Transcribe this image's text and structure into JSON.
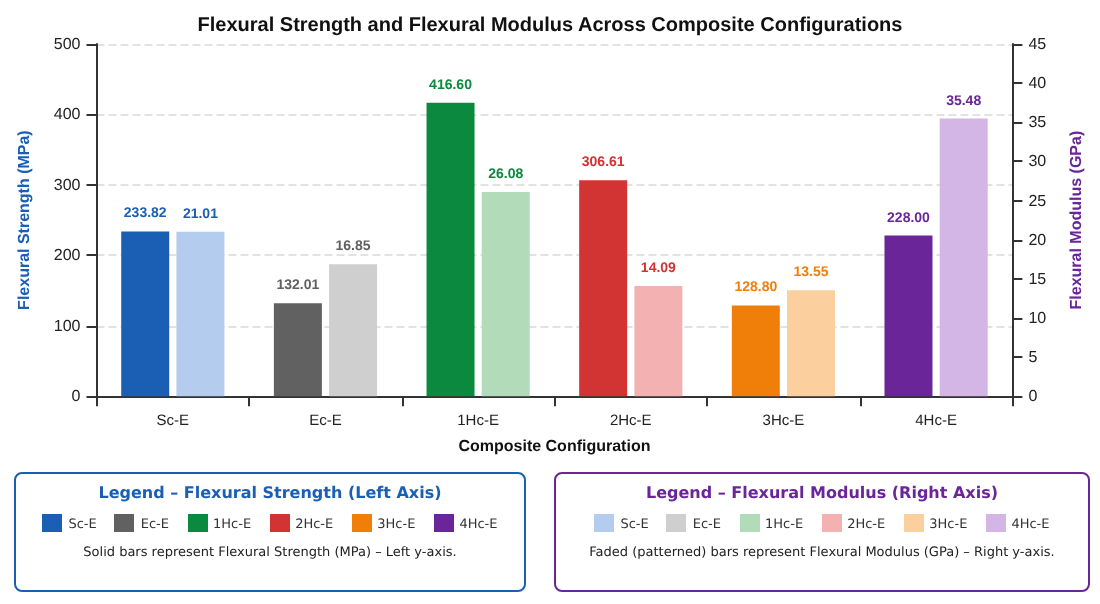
{
  "chart_data": {
    "type": "bar",
    "title": "Flexural Strength and Flexural Modulus Across Composite Configurations",
    "xlabel": "Composite Configuration",
    "ylabel": "Flexural Strength (MPa)",
    "y2label": "Flexural Modulus (GPa)",
    "categories": [
      "Sc-E",
      "Ec-E",
      "1Hc-E",
      "2Hc-E",
      "3Hc-E",
      "4Hc-E"
    ],
    "series": [
      {
        "values": [
          233.82,
          132.01,
          416.6,
          306.61,
          128.8,
          228.0
        ],
        "value_labels": [
          "233.82",
          "132.01",
          "416.60",
          "306.61",
          "128.80",
          "228.00"
        ],
        "colors": [
          "#1a5fb4",
          "#616161",
          "#0b8a3f",
          "#d23333",
          "#f07f0a",
          "#6a2598"
        ]
      },
      {
        "axis": "y2",
        "values": [
          21.01,
          16.85,
          26.08,
          14.09,
          13.55,
          35.48
        ],
        "value_labels": [
          "21.01",
          "16.85",
          "26.08",
          "14.09",
          "13.55",
          "35.48"
        ],
        "colors": [
          "#b4cdee",
          "#cfcfcf",
          "#b2dbba",
          "#f3b1b1",
          "#fbcf9e",
          "#d3b6e6"
        ]
      }
    ],
    "ylim": [
      0,
      500
    ],
    "yticks": [
      0,
      100,
      200,
      300,
      400,
      500
    ],
    "y2lim": [
      0,
      45
    ],
    "y2ticks": [
      0,
      5,
      10,
      15,
      20,
      25,
      30,
      35,
      40,
      45
    ],
    "grid": "y",
    "annotations": [
      "Legend – Flexural Strength (Left Axis)",
      "Solid bars represent Flexural Strength (MPa) – Left y-axis.",
      "Legend – Flexural Modulus (Right Axis)",
      "Faded (patterned) bars represent Flexural Modulus (GPa) – Right y-axis."
    ]
  }
}
